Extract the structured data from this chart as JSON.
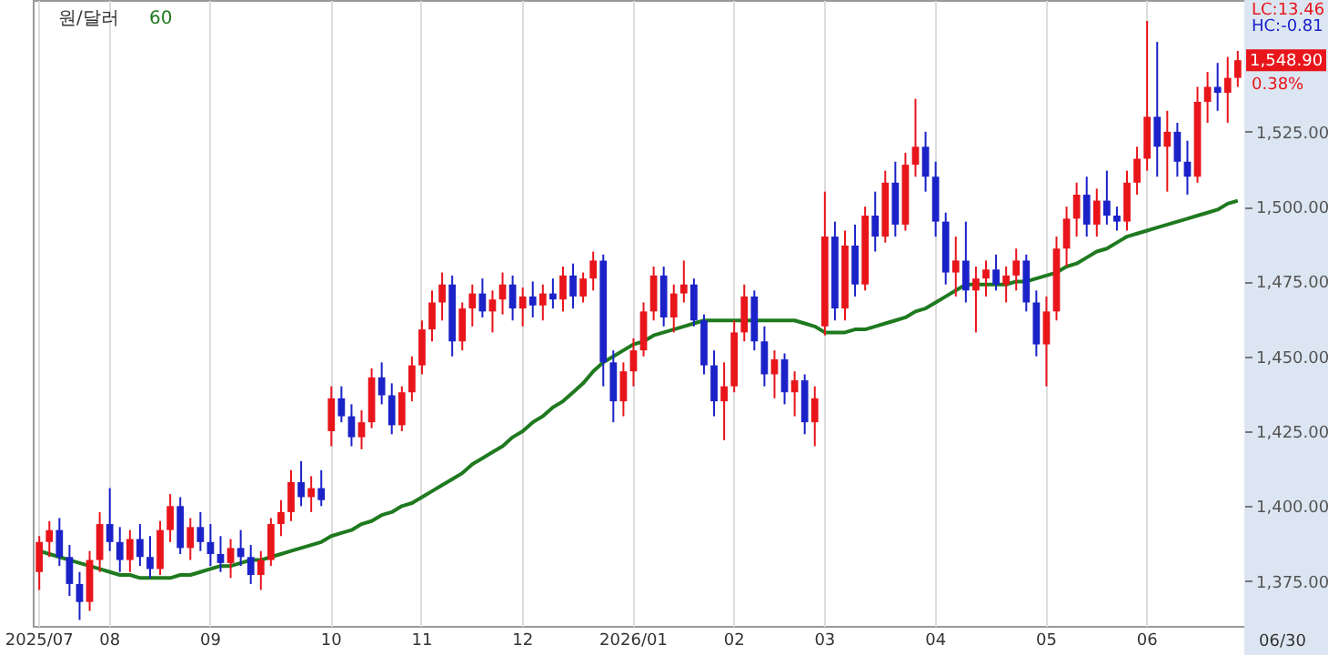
{
  "chart_data": {
    "type": "candlestick",
    "title": "원/달러",
    "categories": [
      "2025/07",
      null,
      null,
      null,
      null,
      null,
      null,
      "08",
      null,
      null,
      null,
      null,
      null,
      null,
      null,
      null,
      null,
      "09",
      null,
      null,
      null,
      null,
      null,
      null,
      null,
      null,
      null,
      null,
      null,
      "10",
      null,
      null,
      null,
      null,
      null,
      null,
      null,
      null,
      "11",
      null,
      null,
      null,
      null,
      null,
      null,
      null,
      null,
      null,
      "12",
      null,
      null,
      null,
      null,
      null,
      null,
      null,
      null,
      null,
      null,
      "2026/01",
      null,
      null,
      null,
      null,
      null,
      null,
      null,
      null,
      null,
      "02",
      null,
      null,
      null,
      null,
      null,
      null,
      null,
      null,
      "03",
      null,
      null,
      null,
      null,
      null,
      null,
      null,
      null,
      null,
      null,
      "04",
      null,
      null,
      null,
      null,
      null,
      null,
      null,
      null,
      null,
      null,
      "05",
      null,
      null,
      null,
      null,
      null,
      null,
      null,
      null,
      null,
      "06",
      null,
      null,
      null,
      null,
      null,
      null,
      null,
      null,
      null
    ],
    "ohlc": [
      [
        1378,
        1390,
        1372,
        1388
      ],
      [
        1388,
        1395,
        1383,
        1392
      ],
      [
        1392,
        1396,
        1380,
        1383
      ],
      [
        1383,
        1387,
        1370,
        1374
      ],
      [
        1374,
        1378,
        1362,
        1368
      ],
      [
        1368,
        1385,
        1365,
        1382
      ],
      [
        1382,
        1398,
        1378,
        1394
      ],
      [
        1394,
        1406,
        1385,
        1388
      ],
      [
        1388,
        1393,
        1378,
        1382
      ],
      [
        1382,
        1392,
        1378,
        1389
      ],
      [
        1389,
        1394,
        1380,
        1383
      ],
      [
        1383,
        1390,
        1376,
        1379
      ],
      [
        1379,
        1395,
        1377,
        1392
      ],
      [
        1392,
        1404,
        1388,
        1400
      ],
      [
        1400,
        1403,
        1384,
        1386
      ],
      [
        1386,
        1396,
        1382,
        1393
      ],
      [
        1393,
        1398,
        1385,
        1388
      ],
      [
        1388,
        1394,
        1380,
        1384
      ],
      [
        1384,
        1390,
        1378,
        1381
      ],
      [
        1381,
        1389,
        1376,
        1386
      ],
      [
        1386,
        1392,
        1380,
        1383
      ],
      [
        1383,
        1387,
        1374,
        1377
      ],
      [
        1377,
        1385,
        1372,
        1382
      ],
      [
        1382,
        1396,
        1380,
        1394
      ],
      [
        1394,
        1402,
        1390,
        1398
      ],
      [
        1398,
        1412,
        1395,
        1408
      ],
      [
        1408,
        1415,
        1400,
        1403
      ],
      [
        1403,
        1410,
        1398,
        1406
      ],
      [
        1406,
        1412,
        1400,
        1402
      ],
      [
        1425,
        1440,
        1420,
        1436
      ],
      [
        1436,
        1440,
        1428,
        1430
      ],
      [
        1430,
        1434,
        1420,
        1423
      ],
      [
        1423,
        1432,
        1419,
        1428
      ],
      [
        1428,
        1446,
        1426,
        1443
      ],
      [
        1443,
        1448,
        1434,
        1437
      ],
      [
        1437,
        1441,
        1424,
        1427
      ],
      [
        1427,
        1440,
        1425,
        1438
      ],
      [
        1438,
        1450,
        1435,
        1447
      ],
      [
        1447,
        1462,
        1444,
        1459
      ],
      [
        1459,
        1472,
        1455,
        1468
      ],
      [
        1468,
        1478,
        1462,
        1474
      ],
      [
        1474,
        1477,
        1450,
        1455
      ],
      [
        1455,
        1468,
        1452,
        1466
      ],
      [
        1466,
        1474,
        1460,
        1471
      ],
      [
        1471,
        1476,
        1463,
        1465
      ],
      [
        1465,
        1472,
        1458,
        1469
      ],
      [
        1469,
        1478,
        1464,
        1474
      ],
      [
        1474,
        1477,
        1462,
        1466
      ],
      [
        1466,
        1473,
        1460,
        1470
      ],
      [
        1470,
        1475,
        1463,
        1467
      ],
      [
        1467,
        1474,
        1462,
        1471
      ],
      [
        1471,
        1476,
        1466,
        1469
      ],
      [
        1469,
        1480,
        1465,
        1477
      ],
      [
        1477,
        1481,
        1466,
        1470
      ],
      [
        1470,
        1478,
        1468,
        1476
      ],
      [
        1476,
        1485,
        1472,
        1482
      ],
      [
        1482,
        1484,
        1440,
        1448
      ],
      [
        1448,
        1452,
        1428,
        1435
      ],
      [
        1435,
        1448,
        1430,
        1445
      ],
      [
        1445,
        1456,
        1440,
        1452
      ],
      [
        1452,
        1468,
        1450,
        1465
      ],
      [
        1465,
        1480,
        1462,
        1477
      ],
      [
        1477,
        1480,
        1460,
        1463
      ],
      [
        1463,
        1474,
        1458,
        1471
      ],
      [
        1471,
        1482,
        1468,
        1474
      ],
      [
        1474,
        1476,
        1460,
        1462
      ],
      [
        1462,
        1464,
        1444,
        1447
      ],
      [
        1447,
        1452,
        1430,
        1435
      ],
      [
        1435,
        1448,
        1422,
        1440
      ],
      [
        1440,
        1462,
        1438,
        1458
      ],
      [
        1458,
        1474,
        1455,
        1470
      ],
      [
        1470,
        1472,
        1452,
        1455
      ],
      [
        1455,
        1460,
        1440,
        1444
      ],
      [
        1444,
        1452,
        1436,
        1449
      ],
      [
        1449,
        1451,
        1434,
        1438
      ],
      [
        1438,
        1445,
        1430,
        1442
      ],
      [
        1442,
        1444,
        1424,
        1428
      ],
      [
        1428,
        1440,
        1420,
        1436
      ],
      [
        1460,
        1505,
        1457,
        1490
      ],
      [
        1490,
        1495,
        1462,
        1466
      ],
      [
        1466,
        1492,
        1462,
        1487
      ],
      [
        1487,
        1494,
        1470,
        1474
      ],
      [
        1474,
        1500,
        1472,
        1497
      ],
      [
        1497,
        1505,
        1485,
        1490
      ],
      [
        1490,
        1512,
        1488,
        1508
      ],
      [
        1508,
        1515,
        1490,
        1494
      ],
      [
        1494,
        1518,
        1492,
        1514
      ],
      [
        1514,
        1536,
        1510,
        1520
      ],
      [
        1520,
        1525,
        1505,
        1510
      ],
      [
        1510,
        1515,
        1490,
        1495
      ],
      [
        1495,
        1498,
        1474,
        1478
      ],
      [
        1478,
        1490,
        1470,
        1482
      ],
      [
        1482,
        1495,
        1468,
        1472
      ],
      [
        1472,
        1480,
        1458,
        1476
      ],
      [
        1476,
        1482,
        1470,
        1479
      ],
      [
        1479,
        1484,
        1472,
        1474
      ],
      [
        1474,
        1480,
        1468,
        1477
      ],
      [
        1477,
        1486,
        1472,
        1482
      ],
      [
        1482,
        1484,
        1465,
        1468
      ],
      [
        1468,
        1472,
        1450,
        1454
      ],
      [
        1454,
        1470,
        1440,
        1465
      ],
      [
        1465,
        1490,
        1462,
        1486
      ],
      [
        1486,
        1500,
        1480,
        1496
      ],
      [
        1496,
        1508,
        1490,
        1504
      ],
      [
        1504,
        1510,
        1490,
        1494
      ],
      [
        1494,
        1506,
        1490,
        1502
      ],
      [
        1502,
        1512,
        1494,
        1497
      ],
      [
        1497,
        1500,
        1492,
        1495
      ],
      [
        1495,
        1512,
        1492,
        1508
      ],
      [
        1508,
        1520,
        1504,
        1516
      ],
      [
        1516,
        1562,
        1512,
        1530
      ],
      [
        1530,
        1555,
        1510,
        1520
      ],
      [
        1520,
        1532,
        1505,
        1525
      ],
      [
        1525,
        1528,
        1510,
        1515
      ],
      [
        1515,
        1522,
        1504,
        1510
      ],
      [
        1510,
        1540,
        1508,
        1535
      ],
      [
        1535,
        1545,
        1528,
        1540
      ],
      [
        1540,
        1548,
        1532,
        1538
      ],
      [
        1538,
        1550,
        1528,
        1543
      ],
      [
        1543,
        1552,
        1540,
        1548.9
      ]
    ],
    "colors": [
      "#e8151b",
      "#e8151b",
      "#1a22c8",
      "#1a22c8",
      "#1a22c8",
      "#e8151b",
      "#e8151b",
      "#1a22c8",
      "#1a22c8",
      "#e8151b",
      "#1a22c8",
      "#1a22c8",
      "#e8151b",
      "#e8151b",
      "#1a22c8",
      "#e8151b",
      "#1a22c8",
      "#1a22c8",
      "#1a22c8",
      "#e8151b",
      "#1a22c8",
      "#1a22c8",
      "#e8151b",
      "#e8151b",
      "#e8151b",
      "#e8151b",
      "#1a22c8",
      "#e8151b",
      "#1a22c8",
      "#e8151b",
      "#1a22c8",
      "#1a22c8",
      "#e8151b",
      "#e8151b",
      "#1a22c8",
      "#1a22c8",
      "#e8151b",
      "#e8151b",
      "#e8151b",
      "#e8151b",
      "#e8151b",
      "#1a22c8",
      "#e8151b",
      "#e8151b",
      "#1a22c8",
      "#e8151b",
      "#e8151b",
      "#1a22c8",
      "#e8151b",
      "#1a22c8",
      "#e8151b",
      "#1a22c8",
      "#e8151b",
      "#1a22c8",
      "#e8151b",
      "#e8151b",
      "#1a22c8",
      "#1a22c8",
      "#e8151b",
      "#e8151b",
      "#e8151b",
      "#e8151b",
      "#1a22c8",
      "#e8151b",
      "#e8151b",
      "#1a22c8",
      "#1a22c8",
      "#1a22c8",
      "#e8151b",
      "#e8151b",
      "#e8151b",
      "#1a22c8",
      "#1a22c8",
      "#e8151b",
      "#1a22c8",
      "#e8151b",
      "#1a22c8",
      "#e8151b",
      "#e8151b",
      "#1a22c8",
      "#e8151b",
      "#1a22c8",
      "#e8151b",
      "#1a22c8",
      "#e8151b",
      "#1a22c8",
      "#e8151b",
      "#e8151b",
      "#1a22c8",
      "#1a22c8",
      "#1a22c8",
      "#e8151b",
      "#1a22c8",
      "#e8151b",
      "#e8151b",
      "#1a22c8",
      "#e8151b",
      "#e8151b",
      "#1a22c8",
      "#1a22c8",
      "#e8151b",
      "#e8151b",
      "#e8151b",
      "#e8151b",
      "#1a22c8",
      "#e8151b",
      "#1a22c8",
      "#1a22c8",
      "#e8151b",
      "#e8151b",
      "#e8151b",
      "#1a22c8",
      "#e8151b",
      "#1a22c8",
      "#1a22c8",
      "#e8151b",
      "#e8151b",
      "#1a22c8",
      "#e8151b",
      "#e8151b"
    ],
    "series": [
      {
        "name": "60",
        "type": "line",
        "color": "#1f7a1f",
        "values": [
          1385,
          1384,
          1383,
          1382,
          1381,
          1380,
          1379,
          1378,
          1377,
          1377,
          1376,
          1376,
          1376,
          1376,
          1377,
          1377,
          1378,
          1379,
          1380,
          1380,
          1381,
          1382,
          1382,
          1383,
          1384,
          1385,
          1386,
          1387,
          1388,
          1390,
          1391,
          1392,
          1394,
          1395,
          1397,
          1398,
          1400,
          1401,
          1403,
          1405,
          1407,
          1409,
          1411,
          1414,
          1416,
          1418,
          1420,
          1423,
          1425,
          1428,
          1430,
          1433,
          1435,
          1438,
          1441,
          1445,
          1448,
          1450,
          1452,
          1454,
          1455,
          1457,
          1458,
          1459,
          1460,
          1461,
          1462,
          1462,
          1462,
          1462,
          1462,
          1462,
          1462,
          1462,
          1462,
          1462,
          1461,
          1460,
          1458,
          1458,
          1458,
          1459,
          1459,
          1460,
          1461,
          1462,
          1463,
          1465,
          1466,
          1468,
          1470,
          1472,
          1474,
          1474,
          1474,
          1474,
          1474,
          1475,
          1475,
          1476,
          1477,
          1478,
          1480,
          1481,
          1483,
          1485,
          1486,
          1488,
          1490,
          1491,
          1492,
          1493,
          1494,
          1495,
          1496,
          1497,
          1498,
          1499,
          1501,
          1502
        ]
      }
    ],
    "ylim": [
      1360,
      1569
    ],
    "yticks": [
      {
        "value": 1375,
        "label": "1,375.00"
      },
      {
        "value": 1400,
        "label": "1,400.00"
      },
      {
        "value": 1425,
        "label": "1,425.00"
      },
      {
        "value": 1450,
        "label": "1,450.00"
      },
      {
        "value": 1475,
        "label": "1,475.00"
      },
      {
        "value": 1500,
        "label": "1,500.00"
      },
      {
        "value": 1525,
        "label": "1,525.00"
      }
    ],
    "grid": "x",
    "legend": "top left",
    "annotations": [
      "LC:13.46",
      "HC:-0.81",
      "1,548.90",
      "0.38%",
      "06/30"
    ]
  }
}
